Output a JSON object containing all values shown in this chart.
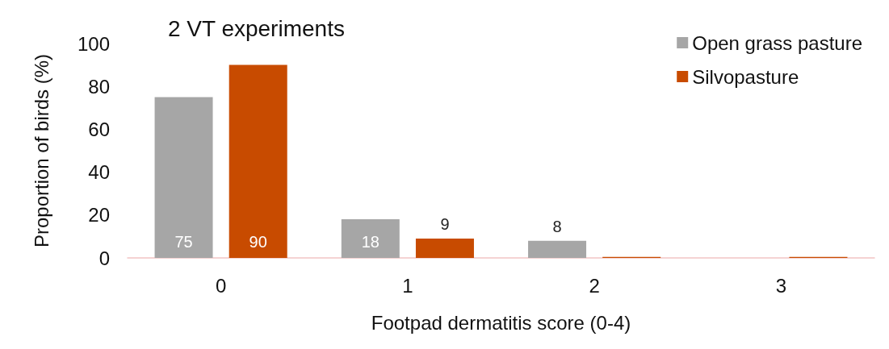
{
  "chart_data": {
    "type": "bar",
    "title": "2 VT experiments",
    "xlabel": "Footpad dermatitis score (0-4)",
    "ylabel": "Proportion of birds (%)",
    "categories": [
      "0",
      "1",
      "2",
      "3"
    ],
    "series": [
      {
        "name": "Open grass pasture",
        "color": "#a6a6a6",
        "values": [
          75,
          18,
          8,
          0
        ],
        "value_labels": [
          "75",
          "18",
          "8",
          null
        ]
      },
      {
        "name": "Silvopasture",
        "color": "#c84b00",
        "values": [
          90,
          9,
          0.5,
          0.5
        ],
        "value_labels": [
          "90",
          "9",
          null,
          null
        ]
      }
    ],
    "ylim": [
      0,
      100
    ],
    "yticks": [
      0,
      20,
      40,
      60,
      80,
      100
    ],
    "grid": false,
    "legend": "top right"
  }
}
